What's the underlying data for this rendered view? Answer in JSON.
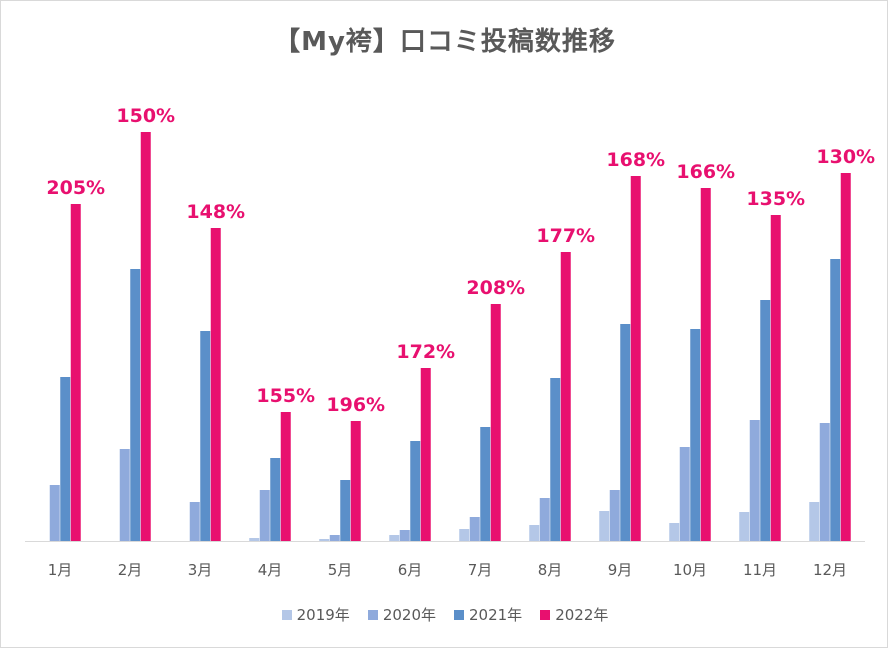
{
  "chart_data": {
    "type": "bar",
    "title": "【My袴】口コミ投稿数推移",
    "categories": [
      "1月",
      "2月",
      "3月",
      "4月",
      "5月",
      "6月",
      "7月",
      "8月",
      "9月",
      "10月",
      "11月",
      "12月"
    ],
    "series": [
      {
        "name": "2019年",
        "color": "#b4c7e7",
        "values": [
          0,
          0,
          0,
          3,
          2,
          6,
          12,
          16,
          30,
          18,
          29,
          39
        ]
      },
      {
        "name": "2020年",
        "color": "#8faadc",
        "values": [
          56,
          92,
          39,
          51,
          6,
          11,
          24,
          43,
          51,
          94,
          121,
          118
        ]
      },
      {
        "name": "2021年",
        "color": "#5b8fc9",
        "values": [
          164,
          272,
          210,
          83,
          61,
          100,
          114,
          163,
          217,
          212,
          241,
          282
        ]
      },
      {
        "name": "2022年",
        "color": "#e8106f",
        "values": [
          337,
          409,
          313,
          129,
          120,
          173,
          237,
          289,
          365,
          353,
          326,
          368
        ]
      }
    ],
    "growth_labels": [
      "205%",
      "150%",
      "148%",
      "155%",
      "196%",
      "172%",
      "208%",
      "177%",
      "168%",
      "166%",
      "135%",
      "130%"
    ],
    "ylim": [
      0,
      450
    ],
    "xlabel": "",
    "ylabel": "",
    "grid": false,
    "legend_position": "bottom"
  }
}
